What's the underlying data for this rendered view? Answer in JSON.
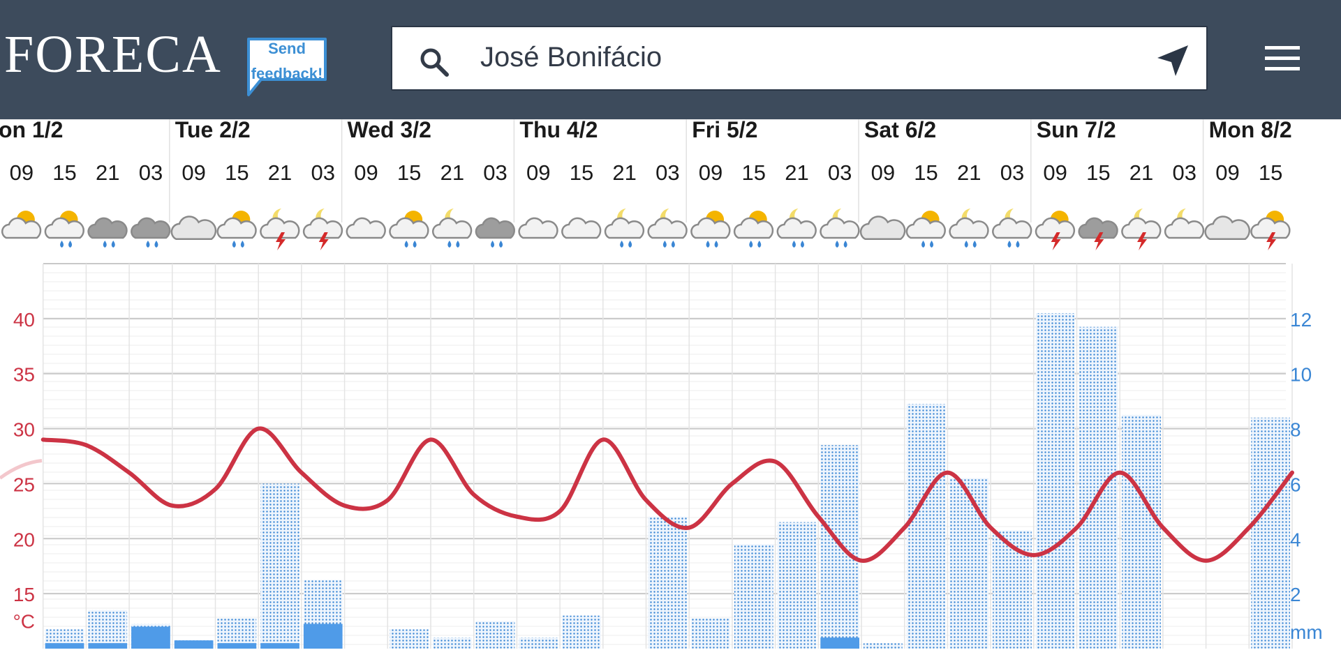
{
  "header": {
    "logo": "FORECA",
    "feedback_line1": "Send",
    "feedback_line2": "feedback!",
    "search_value": "José Bonifácio",
    "icons": [
      "search-icon",
      "locate-arrow-icon",
      "hamburger-menu-icon"
    ],
    "colors": {
      "bar": "#3d4b5c",
      "feedback": "#3c8fd4"
    }
  },
  "chart_data": {
    "type": "line",
    "days": [
      {
        "label": "on 1/2",
        "hours": [
          "09",
          "15",
          "21"
        ]
      },
      {
        "label": "Tue 2/2",
        "hours": [
          "03",
          "09",
          "15",
          "21"
        ]
      },
      {
        "label": "Wed 3/2",
        "hours": [
          "03",
          "09",
          "15",
          "21"
        ]
      },
      {
        "label": "Thu 4/2",
        "hours": [
          "03",
          "09",
          "15",
          "21"
        ]
      },
      {
        "label": "Fri 5/2",
        "hours": [
          "03",
          "09",
          "15",
          "21"
        ]
      },
      {
        "label": "Sat 6/2",
        "hours": [
          "03",
          "09",
          "15",
          "21"
        ]
      },
      {
        "label": "Sun 7/2",
        "hours": [
          "03",
          "09",
          "15",
          "21"
        ]
      },
      {
        "label": "Mon 8/2",
        "hours": [
          "03",
          "09",
          "15"
        ]
      }
    ],
    "weather_icons": [
      "partly-sunny",
      "sun-cloud-rain",
      "dark-cloud-rain",
      "dark-cloud-rain",
      "cloudy",
      "sun-cloud-rain",
      "moon-thunderstorm",
      "moon-thunderstorm",
      "partly-cloudy",
      "sun-cloud-rain",
      "moon-cloud-rain",
      "dark-cloud-rain",
      "partly-cloudy",
      "partly-cloudy",
      "moon-cloud-rain",
      "moon-cloud-rain",
      "sun-cloud-rain",
      "sun-cloud-rain",
      "moon-cloud-rain",
      "moon-cloud-rain",
      "cloudy",
      "sun-cloud-rain",
      "moon-cloud-rain",
      "moon-cloud-rain",
      "sun-thunderstorm",
      "dark-cloud-thunderstorm",
      "moon-thunderstorm",
      "moon-cloudy",
      "cloudy",
      "sun-thunderstorm"
    ],
    "temperature": {
      "unit": "°C",
      "ylim": [
        10,
        45
      ],
      "ticks": [
        15,
        20,
        25,
        30,
        35,
        40
      ],
      "color": "#cc3344",
      "values": [
        29,
        28.5,
        26,
        23,
        24.5,
        30,
        26,
        23,
        23.5,
        29,
        24,
        22,
        22.5,
        29,
        23.5,
        21,
        25,
        27,
        22,
        18,
        21,
        26,
        21,
        18.5,
        21,
        26,
        21,
        18,
        21,
        26
      ]
    },
    "precipitation": {
      "unit": "mm",
      "ylim": [
        0,
        14
      ],
      "ticks": [
        2,
        4,
        6,
        8,
        10,
        12
      ],
      "color": "#3a86d4",
      "probable": [
        0.7,
        1.4,
        0.9,
        0.3,
        1.1,
        6.0,
        2.5,
        0,
        0.7,
        0.4,
        1.0,
        0.4,
        1.2,
        0,
        4.8,
        1.1,
        3.8,
        4.6,
        7.4,
        0.2,
        8.9,
        6.2,
        4.3,
        12.2,
        11.7,
        8.5,
        0,
        0,
        8.4
      ],
      "actual": [
        0.2,
        0.2,
        0.8,
        0.3,
        0.2,
        0.2,
        0.9,
        0,
        0,
        0,
        0,
        0,
        0,
        0,
        0,
        0,
        0,
        0,
        0.4,
        0,
        0,
        0,
        0,
        0,
        0,
        0,
        0,
        0,
        0
      ]
    }
  }
}
